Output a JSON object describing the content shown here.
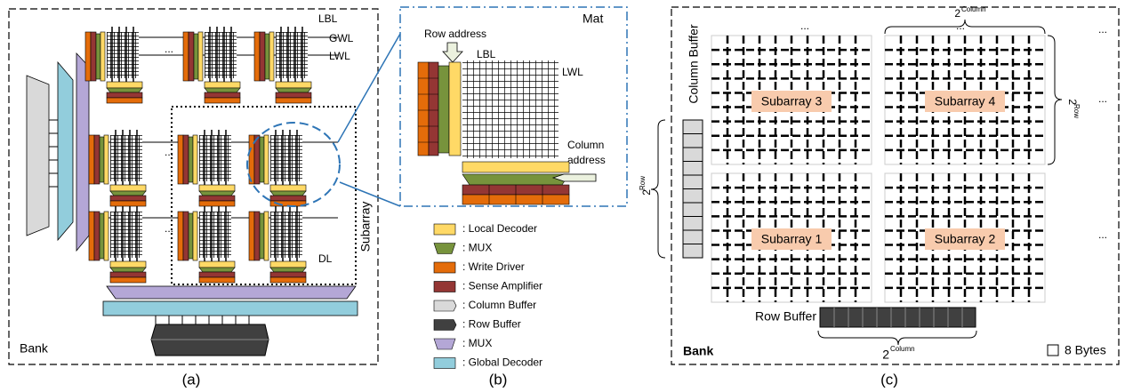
{
  "panel_a": {
    "lbl": "LBL",
    "gwl": "GWL",
    "lwl": "LWL",
    "dl": "DL",
    "subarray": "Subarray",
    "bank": "Bank",
    "caption": "(a)"
  },
  "panel_b": {
    "title": "Mat",
    "row_address": "Row address",
    "lbl": "LBL",
    "lwl": "LWL",
    "column_address": [
      "Column",
      "address"
    ],
    "caption": "(b)"
  },
  "legend": [
    ": Local Decoder",
    ": MUX",
    ": Write Driver",
    ": Sense Amplifier",
    ": Column Buffer",
    ": Row Buffer",
    ": MUX",
    ": Global Decoder"
  ],
  "panel_c": {
    "column_buffer": "Column Buffer",
    "subarrays": [
      "Subarray 3",
      "Subarray 4",
      "Subarray 1",
      "Subarray 2"
    ],
    "row_buffer": "Row Buffer",
    "bank": "Bank",
    "unit": "8 Bytes",
    "base": "2",
    "column": "Column",
    "row": "Row",
    "ellipsis": "...",
    "caption": "(c)"
  }
}
